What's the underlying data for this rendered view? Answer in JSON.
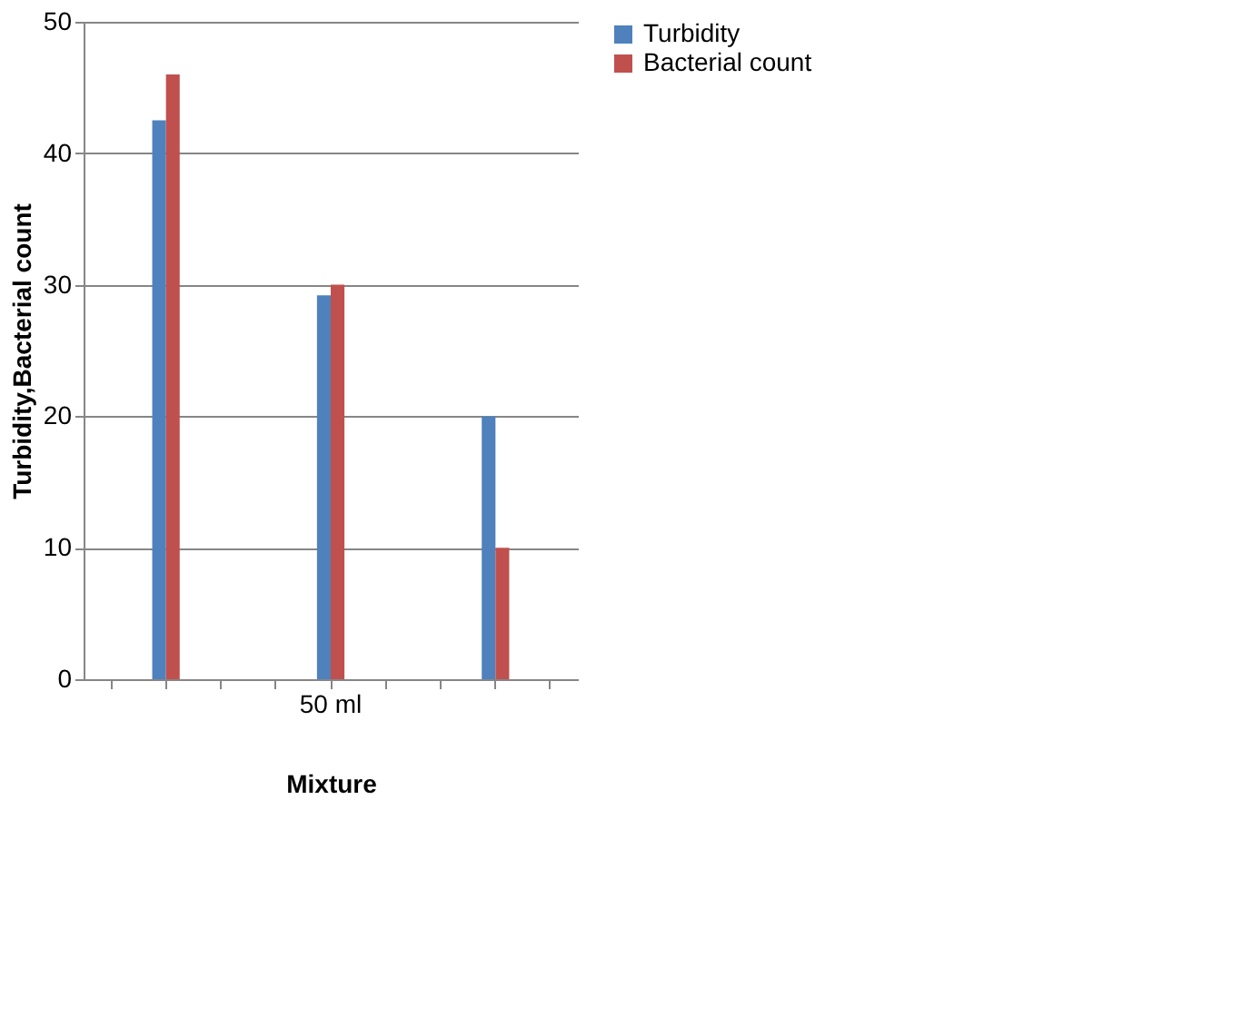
{
  "chart_data": {
    "type": "bar",
    "xlabel": "Mixture",
    "ylabel": "Turbidity,Bacterial count",
    "categories": [
      null,
      null,
      null,
      null,
      "50 ml",
      null,
      null,
      null,
      null
    ],
    "series": [
      {
        "name": "Turbidity",
        "color": "#4f81bd",
        "values": [
          null,
          42.5,
          null,
          null,
          29.2,
          null,
          null,
          20,
          null
        ]
      },
      {
        "name": "Bacterial count",
        "color": "#c0504d",
        "values": [
          null,
          46,
          null,
          null,
          30,
          null,
          null,
          10,
          null
        ]
      }
    ],
    "ylim": [
      0,
      50
    ],
    "yticks": [
      0,
      10,
      20,
      30,
      40,
      50
    ],
    "grid": "y",
    "legend": "right"
  }
}
